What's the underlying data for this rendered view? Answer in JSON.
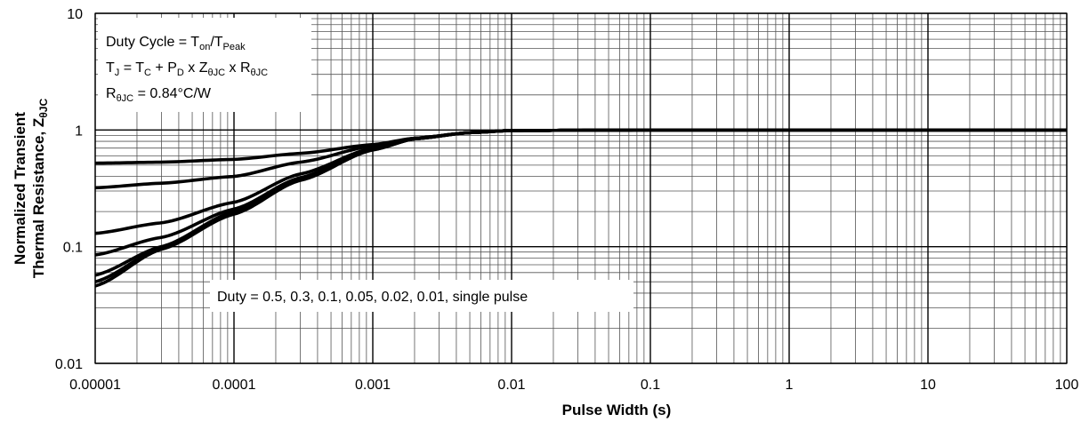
{
  "chart_data": {
    "type": "line",
    "title": "",
    "xlabel": "Pulse Width (s)",
    "ylabel": [
      "Normalized Transient",
      "Thermal Resistance, Z"
    ],
    "ylabel_subscript": "θJC",
    "x_scale": "log",
    "y_scale": "log",
    "xlim": [
      1e-05,
      100
    ],
    "ylim": [
      0.01,
      10
    ],
    "x_ticks": [
      1e-05,
      0.0001,
      0.001,
      0.01,
      0.1,
      1,
      10,
      100
    ],
    "x_tick_labels": [
      "0.00001",
      "0.0001",
      "0.001",
      "0.01",
      "0.1",
      "1",
      "10",
      "100"
    ],
    "y_ticks": [
      0.01,
      0.1,
      1,
      10
    ],
    "y_tick_labels": [
      "0.01",
      "0.1",
      "1",
      "10"
    ],
    "grid": true,
    "legend": "none",
    "line_color": "#000000",
    "annotations": [
      {
        "segments": [
          {
            "text": "Duty Cycle = T",
            "sub": false
          },
          {
            "text": "on",
            "sub": true
          },
          {
            "text": "/T",
            "sub": false
          },
          {
            "text": "Peak",
            "sub": true
          }
        ]
      },
      {
        "segments": [
          {
            "text": "T",
            "sub": false
          },
          {
            "text": "J",
            "sub": true
          },
          {
            "text": " = T",
            "sub": false
          },
          {
            "text": "C",
            "sub": true
          },
          {
            "text": " + P",
            "sub": false
          },
          {
            "text": "D",
            "sub": true
          },
          {
            "text": " x Z",
            "sub": false
          },
          {
            "text": "θJC",
            "sub": true
          },
          {
            "text": " x R",
            "sub": false
          },
          {
            "text": "θJC",
            "sub": true
          }
        ]
      },
      {
        "segments": [
          {
            "text": "R",
            "sub": false
          },
          {
            "text": "θJC",
            "sub": true
          },
          {
            "text": " = 0.84°C/W",
            "sub": false
          }
        ]
      }
    ],
    "curve_label": "Duty = 0.5, 0.3, 0.1, 0.05, 0.02, 0.01, single pulse",
    "x": [
      1e-05,
      3e-05,
      0.0001,
      0.0003,
      0.001,
      0.002,
      0.005,
      0.01,
      0.1,
      1,
      10,
      100
    ],
    "series": [
      {
        "values": [
          0.52,
          0.53,
          0.56,
          0.63,
          0.75,
          0.85,
          0.95,
          0.99,
          1.0,
          1.0,
          1.0,
          1.0
        ]
      },
      {
        "values": [
          0.32,
          0.35,
          0.4,
          0.53,
          0.73,
          0.85,
          0.95,
          0.99,
          1.0,
          1.0,
          1.0,
          1.0
        ]
      },
      {
        "values": [
          0.13,
          0.16,
          0.24,
          0.42,
          0.7,
          0.85,
          0.95,
          0.99,
          1.0,
          1.0,
          1.0,
          1.0
        ]
      },
      {
        "values": [
          0.085,
          0.12,
          0.21,
          0.39,
          0.69,
          0.84,
          0.95,
          0.99,
          1.0,
          1.0,
          1.0,
          1.0
        ]
      },
      {
        "values": [
          0.057,
          0.1,
          0.2,
          0.38,
          0.68,
          0.84,
          0.95,
          0.99,
          1.0,
          1.0,
          1.0,
          1.0
        ]
      },
      {
        "values": [
          0.05,
          0.097,
          0.195,
          0.375,
          0.68,
          0.84,
          0.95,
          0.99,
          1.0,
          1.0,
          1.0,
          1.0
        ]
      },
      {
        "values": [
          0.046,
          0.095,
          0.19,
          0.37,
          0.675,
          0.84,
          0.95,
          0.99,
          1.0,
          1.0,
          1.0,
          1.0
        ]
      }
    ]
  }
}
